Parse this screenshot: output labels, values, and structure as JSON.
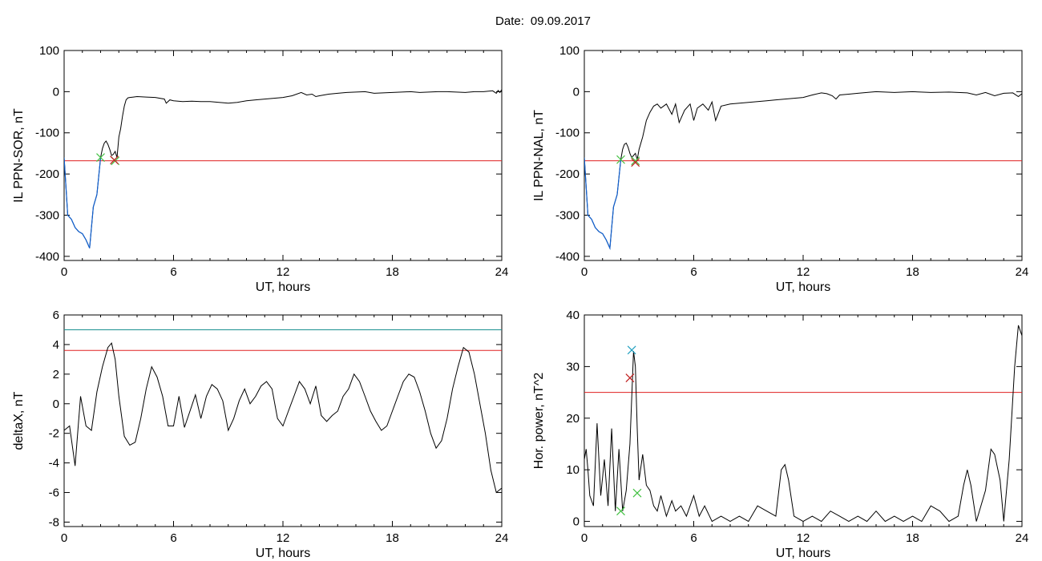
{
  "header": {
    "date_label": "Date:",
    "date_value": "09.09.2017"
  },
  "chart_data": [
    {
      "type": "line",
      "title": "",
      "xlabel": "UT, hours",
      "ylabel": "IL PPN-SOR, nT",
      "xlim": [
        0,
        24
      ],
      "ylim": [
        -410,
        100
      ],
      "xticks": [
        0,
        6,
        12,
        18,
        24
      ],
      "yticks": [
        100,
        0,
        -100,
        -200,
        -300,
        -400
      ],
      "grid": false,
      "series": [
        {
          "color": "#000000",
          "x": [
            0,
            0.2,
            0.4,
            0.6,
            0.8,
            1.0,
            1.2,
            1.4,
            1.6,
            1.8,
            2.0,
            2.1,
            2.2,
            2.3,
            2.4,
            2.5,
            2.6,
            2.7,
            2.8,
            2.9,
            3.0,
            3.1,
            3.2,
            3.3,
            3.4,
            3.5,
            3.6,
            3.8,
            4.0,
            4.5,
            5.0,
            5.5,
            5.6,
            5.8,
            6.0,
            6.5,
            7.0,
            7.5,
            8.0,
            8.5,
            9.0,
            9.5,
            10.0,
            10.5,
            11.0,
            11.5,
            12.0,
            12.5,
            13.0,
            13.3,
            13.6,
            13.8,
            14.0,
            14.5,
            15.0,
            15.5,
            16.0,
            16.5,
            17.0,
            17.5,
            18.0,
            18.5,
            19.0,
            19.5,
            20.0,
            20.5,
            21.0,
            21.5,
            22.0,
            22.5,
            23.0,
            23.5,
            23.7,
            23.8,
            23.9,
            24.0
          ],
          "y": [
            -160,
            -300,
            -310,
            -330,
            -340,
            -345,
            -360,
            -380,
            -280,
            -250,
            -160,
            -138,
            -125,
            -120,
            -128,
            -140,
            -155,
            -152,
            -145,
            -160,
            -110,
            -90,
            -60,
            -35,
            -20,
            -15,
            -14,
            -13,
            -12,
            -13,
            -14,
            -18,
            -28,
            -20,
            -22,
            -24,
            -23,
            -24,
            -24,
            -26,
            -28,
            -26,
            -22,
            -20,
            -18,
            -16,
            -14,
            -10,
            -2,
            -8,
            -6,
            -12,
            -10,
            -6,
            -4,
            -2,
            -1,
            0,
            -4,
            -3,
            -2,
            -1,
            0,
            -2,
            -1,
            0,
            0,
            -1,
            -2,
            0,
            0,
            2,
            -4,
            3,
            -2,
            5
          ]
        }
      ],
      "highlight_series": {
        "color": "#1060d0",
        "x": [
          0,
          0.2,
          0.4,
          0.6,
          0.8,
          1.0,
          1.2,
          1.4,
          1.6,
          1.8,
          2.0
        ],
        "y": [
          -160,
          -300,
          -310,
          -330,
          -340,
          -345,
          -360,
          -380,
          -280,
          -250,
          -160
        ]
      },
      "threshold": {
        "color": "#e02020",
        "value": -168
      },
      "markers": [
        {
          "x": 2.0,
          "y": -160,
          "color": "#40c040"
        },
        {
          "x": 2.8,
          "y": -168,
          "color": "#40c040"
        },
        {
          "x": 2.75,
          "y": -166,
          "color": "#c02020"
        }
      ]
    },
    {
      "type": "line",
      "title": "",
      "xlabel": "UT, hours",
      "ylabel": "IL PPN-NAL, nT",
      "xlim": [
        0,
        24
      ],
      "ylim": [
        -410,
        100
      ],
      "xticks": [
        0,
        6,
        12,
        18,
        24
      ],
      "yticks": [
        100,
        0,
        -100,
        -200,
        -300,
        -400
      ],
      "grid": false,
      "series": [
        {
          "color": "#000000",
          "x": [
            0,
            0.2,
            0.4,
            0.6,
            0.8,
            1.0,
            1.2,
            1.4,
            1.6,
            1.8,
            2.0,
            2.1,
            2.2,
            2.3,
            2.4,
            2.5,
            2.6,
            2.7,
            2.8,
            2.9,
            3.0,
            3.2,
            3.4,
            3.6,
            3.8,
            4.0,
            4.2,
            4.5,
            4.8,
            5.0,
            5.2,
            5.5,
            5.8,
            6.0,
            6.2,
            6.5,
            6.8,
            7.0,
            7.2,
            7.5,
            8.0,
            8.5,
            9.0,
            9.5,
            10.0,
            10.5,
            11.0,
            11.5,
            12.0,
            12.5,
            13.0,
            13.3,
            13.6,
            13.8,
            14.0,
            14.5,
            15.0,
            15.5,
            16.0,
            17.0,
            18.0,
            19.0,
            20.0,
            21.0,
            21.5,
            22.0,
            22.5,
            23.0,
            23.5,
            23.8,
            24.0
          ],
          "y": [
            -160,
            -300,
            -310,
            -330,
            -340,
            -345,
            -360,
            -380,
            -280,
            -250,
            -165,
            -140,
            -128,
            -125,
            -135,
            -150,
            -160,
            -155,
            -150,
            -165,
            -140,
            -110,
            -70,
            -50,
            -35,
            -30,
            -40,
            -30,
            -55,
            -30,
            -75,
            -45,
            -30,
            -70,
            -40,
            -30,
            -45,
            -25,
            -70,
            -35,
            -30,
            -28,
            -26,
            -24,
            -22,
            -20,
            -18,
            -16,
            -14,
            -8,
            -3,
            -5,
            -10,
            -18,
            -8,
            -6,
            -4,
            -2,
            0,
            -2,
            0,
            -2,
            -1,
            -3,
            -8,
            -2,
            -10,
            -4,
            -3,
            -12,
            -5
          ]
        }
      ],
      "highlight_series": {
        "color": "#1060d0",
        "x": [
          0,
          0.2,
          0.4,
          0.6,
          0.8,
          1.0,
          1.2,
          1.4,
          1.6,
          1.8,
          2.0
        ],
        "y": [
          -160,
          -300,
          -310,
          -330,
          -340,
          -345,
          -360,
          -380,
          -280,
          -250,
          -165
        ]
      },
      "threshold": {
        "color": "#e02020",
        "value": -168
      },
      "markers": [
        {
          "x": 2.0,
          "y": -165,
          "color": "#40c040"
        },
        {
          "x": 2.8,
          "y": -168,
          "color": "#40c040"
        },
        {
          "x": 2.8,
          "y": -172,
          "color": "#c02020"
        }
      ]
    },
    {
      "type": "line",
      "title": "",
      "xlabel": "UT, hours",
      "ylabel": "deltaX, nT",
      "xlim": [
        0,
        24
      ],
      "ylim": [
        -8.3,
        6
      ],
      "xticks": [
        0,
        6,
        12,
        18,
        24
      ],
      "yticks": [
        6,
        4,
        2,
        0,
        -2,
        -4,
        -6,
        -8
      ],
      "grid": false,
      "series": [
        {
          "color": "#000000",
          "x": [
            0,
            0.3,
            0.6,
            0.9,
            1.2,
            1.5,
            1.8,
            2.1,
            2.4,
            2.6,
            2.8,
            3.0,
            3.3,
            3.6,
            3.9,
            4.2,
            4.5,
            4.8,
            5.1,
            5.4,
            5.7,
            6.0,
            6.3,
            6.6,
            6.9,
            7.2,
            7.5,
            7.8,
            8.1,
            8.4,
            8.7,
            9.0,
            9.3,
            9.6,
            9.9,
            10.2,
            10.5,
            10.8,
            11.1,
            11.4,
            11.7,
            12.0,
            12.3,
            12.6,
            12.9,
            13.2,
            13.5,
            13.8,
            14.1,
            14.4,
            14.7,
            15.0,
            15.3,
            15.6,
            15.9,
            16.2,
            16.5,
            16.8,
            17.1,
            17.4,
            17.7,
            18.0,
            18.3,
            18.6,
            18.9,
            19.2,
            19.5,
            19.8,
            20.1,
            20.4,
            20.7,
            21.0,
            21.3,
            21.6,
            21.9,
            22.2,
            22.5,
            22.8,
            23.1,
            23.4,
            23.7,
            24.0
          ],
          "y": [
            -1.8,
            -1.5,
            -4.2,
            0.5,
            -1.5,
            -1.8,
            0.8,
            2.5,
            3.8,
            4.1,
            3.0,
            0.5,
            -2.2,
            -2.8,
            -2.6,
            -1.0,
            1.0,
            2.5,
            1.8,
            0.5,
            -1.5,
            -1.5,
            0.5,
            -1.6,
            -0.5,
            0.6,
            -1.0,
            0.5,
            1.3,
            1.0,
            0.2,
            -1.8,
            -1.0,
            0.2,
            1.0,
            0.0,
            0.5,
            1.2,
            1.5,
            1.0,
            -1.0,
            -1.5,
            -0.5,
            0.5,
            1.5,
            1.0,
            0.0,
            1.2,
            -0.8,
            -1.2,
            -0.8,
            -0.5,
            0.5,
            1.0,
            2.0,
            1.5,
            0.5,
            -0.5,
            -1.2,
            -1.8,
            -1.5,
            -0.5,
            0.5,
            1.5,
            2.0,
            1.8,
            0.8,
            -0.5,
            -2.0,
            -3.0,
            -2.5,
            -1.0,
            1.0,
            2.5,
            3.8,
            3.5,
            2.0,
            0.0,
            -2.0,
            -4.5,
            -6.0,
            -5.7
          ]
        }
      ],
      "thresholds": [
        {
          "color": "#1a9090",
          "value": 5.0
        },
        {
          "color": "#e02020",
          "value": 3.6
        }
      ]
    },
    {
      "type": "line",
      "title": "",
      "xlabel": "UT, hours",
      "ylabel": "Hor. power, nT^2",
      "xlim": [
        0,
        24
      ],
      "ylim": [
        -1,
        40
      ],
      "xticks": [
        0,
        6,
        12,
        18,
        24
      ],
      "yticks": [
        40,
        30,
        20,
        10,
        0
      ],
      "grid": false,
      "series": [
        {
          "color": "#000000",
          "x": [
            0,
            0.1,
            0.2,
            0.3,
            0.5,
            0.7,
            0.9,
            1.1,
            1.3,
            1.5,
            1.7,
            1.9,
            2.1,
            2.3,
            2.5,
            2.7,
            2.8,
            2.9,
            3.0,
            3.2,
            3.4,
            3.6,
            3.8,
            4.0,
            4.2,
            4.5,
            4.8,
            5.0,
            5.3,
            5.6,
            6.0,
            6.3,
            6.6,
            7.0,
            7.5,
            8.0,
            8.5,
            9.0,
            9.5,
            10.0,
            10.5,
            10.8,
            11.0,
            11.2,
            11.5,
            12.0,
            12.5,
            13.0,
            13.5,
            14.0,
            14.5,
            15.0,
            15.5,
            16.0,
            16.5,
            17.0,
            17.5,
            18.0,
            18.5,
            19.0,
            19.5,
            20.0,
            20.5,
            20.8,
            21.0,
            21.2,
            21.5,
            22.0,
            22.3,
            22.5,
            22.8,
            23.0,
            23.3,
            23.6,
            23.8,
            24.0
          ],
          "y": [
            12,
            14,
            10,
            5,
            3,
            19,
            5,
            12,
            3,
            18,
            2,
            14,
            2,
            6,
            15,
            33,
            30,
            18,
            8,
            13,
            7,
            6,
            3,
            2,
            5,
            1,
            4,
            2,
            3,
            1,
            5,
            1,
            3,
            0,
            1,
            0,
            1,
            0,
            3,
            2,
            1,
            10,
            11,
            8,
            1,
            0,
            1,
            0,
            2,
            1,
            0,
            1,
            0,
            2,
            0,
            1,
            0,
            1,
            0,
            3,
            2,
            0,
            1,
            7,
            10,
            7,
            0,
            6,
            14,
            13,
            8,
            0,
            12,
            30,
            38,
            36
          ]
        }
      ],
      "threshold": {
        "color": "#e02020",
        "value": 25
      },
      "markers": [
        {
          "x": 2.6,
          "y": 33.2,
          "color": "#20a0c0"
        },
        {
          "x": 2.5,
          "y": 27.8,
          "color": "#c02020"
        },
        {
          "x": 2.0,
          "y": 2.0,
          "color": "#40c040"
        },
        {
          "x": 2.9,
          "y": 5.5,
          "color": "#40c040"
        }
      ]
    }
  ]
}
